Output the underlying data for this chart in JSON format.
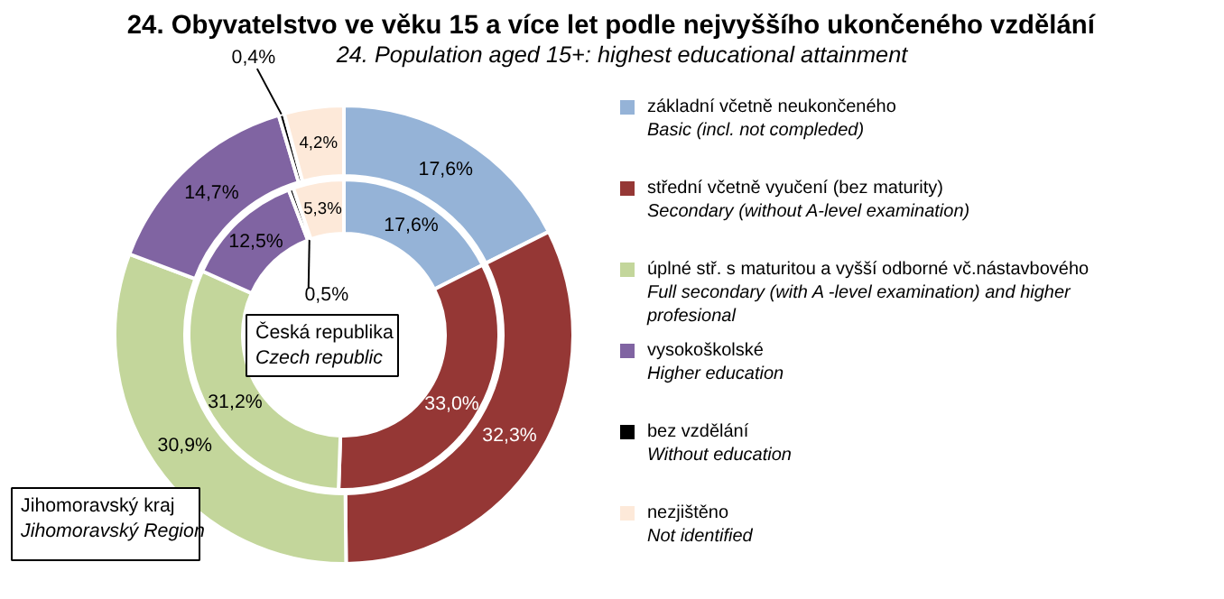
{
  "chart_data": {
    "type": "donut",
    "title": "24. Obyvatelstvo  ve věku 15 a více let podle nejvyššího  ukončeného  vzdělání",
    "subtitle": "24. Population aged 15+: highest educational attainment",
    "categories": [
      "základní včetně neukončeného\nBasic (incl. not compleded)",
      "střední včetně vyučení (bez maturity)\nSecondary  (without A-level  examination)",
      "úplné stř. s maturitou a vyšší odborné vč.nástavbového\nFull secondary  (with  A -level  examination) and higher\nprofesional",
      "vysokoškolské\nHigher education",
      "bez vzdělání\nWithout education",
      "nezjištěno\nNot identified"
    ],
    "colors": [
      "#95b3d7",
      "#953735",
      "#c3d69b",
      "#8064a2",
      "#000000",
      "#fde9d9"
    ],
    "series": [
      {
        "name": "Jihomoravský kraj\nJihomoravský Region",
        "values": [
          17.6,
          32.3,
          30.9,
          14.7,
          0.4,
          4.2
        ],
        "value_labels": [
          "17,6%",
          "32,3%",
          "30,9%",
          "14,7%",
          "0,4%",
          "4,2%"
        ]
      },
      {
        "name": "Česká republika\nCzech republic",
        "values": [
          17.6,
          33.0,
          31.2,
          12.5,
          0.5,
          5.3
        ],
        "value_labels": [
          "17,6%",
          "33,0%",
          "31,2%",
          "12,5%",
          "0,5%",
          "5,3%"
        ]
      }
    ],
    "legend": "right"
  }
}
